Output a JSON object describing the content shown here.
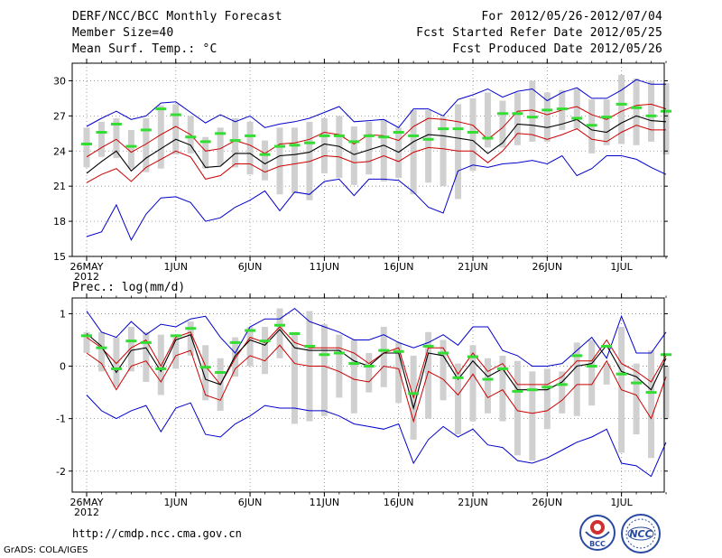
{
  "header": {
    "title": "DERF/NCC/BCC Monthly Forecast",
    "member_size": "Member Size=40",
    "variable": "Mean Surf. Temp.: °C",
    "period": "For 2012/05/26-2012/07/04",
    "fcst_started": "Fcst Started Refer Date 2012/05/25",
    "fcst_produced": "Fcst Produced Date 2012/05/26"
  },
  "panel2_label": "Prec.: log(mm/d)",
  "footer": {
    "url": "http://cmdp.ncc.cma.gov.cn",
    "grads_credit": "GrADS: COLA/IGES",
    "logo_left_text": "BCC",
    "logo_right_text": "NCC"
  },
  "x_ticks": [
    {
      "day": 0,
      "label": "26MAY",
      "sub": "2012"
    },
    {
      "day": 6,
      "label": "1JUN"
    },
    {
      "day": 11,
      "label": "6JUN"
    },
    {
      "day": 16,
      "label": "11JUN"
    },
    {
      "day": 21,
      "label": "16JUN"
    },
    {
      "day": 26,
      "label": "21JUN"
    },
    {
      "day": 31,
      "label": "26JUN"
    },
    {
      "day": 36,
      "label": "1JUL"
    }
  ],
  "colors": {
    "ensemble_max_min": "#0000cc",
    "spread": "#cc0000",
    "mean": "#000000",
    "box": "#d0d0d0",
    "observed": "#33dd33"
  },
  "chart_data": [
    {
      "type": "line",
      "title": "Mean Surf. Temp.: °C",
      "xlabel": "",
      "ylabel": "",
      "ylim": [
        15,
        31.5
      ],
      "yticks": [
        15,
        18,
        21,
        24,
        27,
        30
      ],
      "x": [
        0,
        1,
        2,
        3,
        4,
        5,
        6,
        7,
        8,
        9,
        10,
        11,
        12,
        13,
        14,
        15,
        16,
        17,
        18,
        19,
        20,
        21,
        22,
        23,
        24,
        25,
        26,
        27,
        28,
        29,
        30,
        31,
        32,
        33,
        34,
        35,
        36,
        37,
        38,
        39
      ],
      "series": [
        {
          "name": "max",
          "values": [
            26.1,
            26.8,
            27.4,
            26.7,
            27.0,
            28.1,
            28.2,
            27.3,
            26.4,
            27.1,
            26.5,
            27.0,
            26.0,
            26.3,
            26.5,
            26.8,
            27.3,
            27.8,
            26.5,
            26.6,
            26.7,
            26.0,
            27.6,
            27.6,
            27.0,
            28.4,
            28.8,
            29.3,
            28.6,
            29.1,
            29.3,
            28.3,
            29.0,
            29.4,
            28.5,
            28.5,
            29.2,
            30.1,
            29.7,
            29.7
          ]
        },
        {
          "name": "upper",
          "values": [
            23.5,
            24.3,
            25.0,
            23.9,
            24.6,
            25.4,
            26.1,
            25.4,
            24.0,
            24.2,
            24.9,
            24.5,
            23.8,
            24.6,
            24.7,
            25.0,
            25.6,
            25.4,
            24.6,
            25.4,
            25.3,
            24.9,
            26.1,
            26.8,
            26.7,
            26.5,
            26.2,
            25.0,
            26.0,
            27.4,
            27.5,
            27.1,
            27.5,
            27.8,
            27.1,
            26.7,
            27.4,
            27.9,
            28.0,
            27.6
          ]
        },
        {
          "name": "mean",
          "values": [
            22.1,
            23.1,
            24.0,
            22.3,
            23.4,
            24.2,
            25.0,
            24.5,
            22.6,
            22.7,
            23.8,
            23.8,
            22.9,
            23.6,
            23.7,
            23.9,
            24.6,
            24.4,
            23.7,
            24.1,
            24.5,
            23.9,
            24.8,
            25.4,
            25.3,
            25.1,
            24.9,
            23.8,
            24.7,
            26.3,
            26.2,
            26.0,
            26.3,
            26.7,
            25.8,
            25.6,
            26.4,
            27.0,
            26.6,
            26.5
          ]
        },
        {
          "name": "lower",
          "values": [
            21.3,
            22.0,
            22.5,
            21.4,
            22.6,
            23.3,
            24.0,
            23.5,
            21.6,
            21.9,
            22.9,
            22.9,
            22.2,
            22.7,
            22.9,
            23.1,
            23.6,
            23.5,
            23.0,
            23.1,
            23.6,
            23.1,
            23.9,
            24.3,
            24.2,
            24.0,
            24.0,
            23.0,
            24.0,
            25.5,
            25.4,
            25.0,
            25.4,
            25.9,
            25.0,
            24.8,
            25.6,
            26.2,
            25.8,
            25.8
          ]
        },
        {
          "name": "min",
          "values": [
            16.7,
            17.1,
            19.4,
            16.4,
            18.6,
            20.0,
            20.1,
            19.6,
            18.0,
            18.3,
            19.2,
            19.8,
            20.6,
            18.9,
            20.5,
            20.3,
            21.4,
            21.6,
            20.2,
            21.6,
            21.6,
            21.5,
            20.5,
            19.2,
            18.7,
            22.3,
            22.8,
            22.6,
            22.9,
            23.0,
            23.2,
            22.9,
            23.6,
            21.9,
            22.5,
            23.6,
            23.6,
            23.3,
            22.6,
            22.0
          ]
        },
        {
          "name": "box_top",
          "values": [
            26.0,
            26.5,
            26.8,
            25.8,
            26.8,
            27.9,
            28.0,
            27.0,
            25.2,
            26.0,
            26.8,
            26.5,
            24.9,
            26.0,
            26.0,
            26.5,
            26.8,
            27.0,
            26.1,
            26.5,
            26.7,
            26.0,
            27.5,
            27.5,
            26.9,
            28.0,
            28.5,
            29.0,
            28.3,
            29.0,
            30.0,
            29.0,
            29.2,
            29.3,
            28.4,
            28.4,
            30.5,
            30.2,
            30.0,
            29.8
          ]
        },
        {
          "name": "box_bottom",
          "values": [
            22.6,
            23.5,
            23.4,
            22.5,
            22.2,
            22.5,
            23.7,
            23.8,
            22.5,
            22.8,
            22.6,
            22.0,
            21.5,
            20.3,
            20.4,
            19.8,
            22.1,
            21.7,
            21.1,
            22.0,
            21.4,
            21.7,
            20.3,
            21.3,
            21.0,
            19.9,
            22.3,
            24.3,
            24.3,
            24.5,
            24.8,
            24.8,
            25.8,
            25.9,
            23.8,
            24.5,
            24.6,
            24.5,
            24.8,
            23.7
          ]
        },
        {
          "name": "observed",
          "values": [
            24.6,
            25.6,
            26.3,
            24.4,
            25.8,
            27.6,
            27.1,
            25.2,
            24.8,
            25.5,
            24.9,
            25.3,
            23.7,
            24.4,
            24.5,
            24.7,
            25.3,
            25.3,
            24.8,
            25.3,
            25.2,
            25.6,
            25.3,
            25.0,
            25.9,
            25.9,
            25.6,
            25.1,
            27.2,
            27.2,
            26.9,
            27.5,
            27.6,
            26.8,
            26.2,
            26.9,
            28.0,
            27.7,
            27.0,
            27.4
          ]
        }
      ]
    },
    {
      "type": "line",
      "title": "Prec.: log(mm/d)",
      "xlabel": "",
      "ylabel": "",
      "ylim": [
        -2.4,
        1.3
      ],
      "yticks": [
        -2,
        -1,
        0,
        1
      ],
      "x": [
        0,
        1,
        2,
        3,
        4,
        5,
        6,
        7,
        8,
        9,
        10,
        11,
        12,
        13,
        14,
        15,
        16,
        17,
        18,
        19,
        20,
        21,
        22,
        23,
        24,
        25,
        26,
        27,
        28,
        29,
        30,
        31,
        32,
        33,
        34,
        35,
        36,
        37,
        38,
        39
      ],
      "series": [
        {
          "name": "max",
          "values": [
            1.05,
            0.65,
            0.55,
            0.85,
            0.6,
            0.8,
            0.75,
            0.9,
            0.95,
            0.55,
            0.25,
            0.75,
            0.9,
            0.9,
            1.1,
            0.85,
            0.75,
            0.65,
            0.5,
            0.5,
            0.6,
            0.45,
            0.35,
            0.45,
            0.6,
            0.4,
            0.75,
            0.75,
            0.3,
            0.2,
            0.0,
            0.0,
            0.05,
            0.3,
            0.55,
            0.15,
            0.95,
            0.25,
            0.25,
            0.65
          ]
        },
        {
          "name": "upper",
          "values": [
            0.55,
            0.35,
            0.05,
            0.35,
            0.5,
            0.0,
            0.55,
            0.65,
            0.0,
            -0.35,
            0.15,
            0.55,
            0.45,
            0.75,
            0.45,
            0.35,
            0.35,
            0.35,
            0.25,
            0.05,
            0.25,
            0.35,
            -0.6,
            0.35,
            0.35,
            -0.15,
            0.25,
            -0.1,
            0.05,
            -0.35,
            -0.35,
            -0.35,
            -0.2,
            0.1,
            0.1,
            0.5,
            0.05,
            -0.1,
            -0.3,
            0.2
          ]
        },
        {
          "name": "mean",
          "values": [
            0.62,
            0.38,
            -0.12,
            0.3,
            0.35,
            -0.1,
            0.5,
            0.6,
            -0.25,
            -0.35,
            0.2,
            0.5,
            0.4,
            0.7,
            0.35,
            0.3,
            0.3,
            0.3,
            0.1,
            0.0,
            0.25,
            0.25,
            -0.8,
            0.25,
            0.2,
            -0.25,
            0.1,
            -0.2,
            -0.05,
            -0.45,
            -0.45,
            -0.45,
            -0.3,
            0.0,
            0.05,
            0.4,
            -0.1,
            -0.2,
            -0.45,
            0.15
          ]
        },
        {
          "name": "lower",
          "values": [
            0.25,
            0.05,
            -0.45,
            0.0,
            0.1,
            -0.3,
            0.2,
            0.3,
            -0.55,
            -0.65,
            -0.05,
            0.2,
            0.1,
            0.4,
            0.05,
            0.0,
            0.0,
            -0.1,
            -0.25,
            -0.3,
            0.0,
            -0.05,
            -1.05,
            -0.1,
            -0.25,
            -0.55,
            -0.15,
            -0.6,
            -0.45,
            -0.85,
            -0.9,
            -0.85,
            -0.65,
            -0.35,
            -0.35,
            0.1,
            -0.45,
            -0.55,
            -1.0,
            -0.2
          ]
        },
        {
          "name": "min",
          "values": [
            -0.55,
            -0.85,
            -1.0,
            -0.85,
            -0.75,
            -1.25,
            -0.8,
            -0.7,
            -1.3,
            -1.35,
            -1.1,
            -0.95,
            -0.75,
            -0.8,
            -0.8,
            -0.85,
            -0.85,
            -0.95,
            -1.1,
            -1.15,
            -1.2,
            -1.1,
            -1.85,
            -1.4,
            -1.15,
            -1.35,
            -1.2,
            -1.5,
            -1.55,
            -1.8,
            -1.85,
            -1.75,
            -1.6,
            -1.45,
            -1.35,
            -1.2,
            -1.85,
            -1.9,
            -2.1,
            -1.45
          ]
        },
        {
          "name": "box_top",
          "values": [
            0.65,
            0.65,
            0.55,
            0.75,
            0.65,
            0.6,
            0.55,
            0.85,
            0.4,
            0.15,
            0.55,
            0.75,
            0.75,
            1.1,
            0.65,
            1.05,
            0.8,
            0.6,
            0.5,
            0.25,
            0.75,
            0.45,
            0.2,
            0.65,
            0.5,
            0.05,
            0.4,
            0.15,
            0.2,
            0.1,
            -0.1,
            -0.05,
            -0.1,
            0.45,
            0.5,
            0.05,
            0.75,
            0.05,
            0.3,
            0.0
          ]
        },
        {
          "name": "box_bottom",
          "values": [
            0.25,
            -0.1,
            -0.4,
            -0.1,
            -0.3,
            -0.55,
            -0.05,
            0.2,
            -0.65,
            -0.85,
            -0.2,
            0.0,
            -0.15,
            0.15,
            -1.1,
            -1.05,
            -0.95,
            -0.6,
            -0.9,
            -0.5,
            -0.4,
            -0.7,
            -1.4,
            -1.0,
            -0.65,
            -1.3,
            -1.05,
            -0.9,
            -1.05,
            -1.7,
            -1.8,
            -1.2,
            -0.9,
            -0.95,
            -0.75,
            -0.35,
            -1.65,
            -1.3,
            -1.75,
            -1.0
          ]
        },
        {
          "name": "observed",
          "values": [
            0.58,
            0.35,
            -0.05,
            0.48,
            0.45,
            -0.05,
            0.58,
            0.72,
            -0.02,
            -0.12,
            0.45,
            0.68,
            0.48,
            0.78,
            0.62,
            0.38,
            0.22,
            0.25,
            0.05,
            0.0,
            0.3,
            0.28,
            -0.52,
            0.38,
            0.25,
            -0.22,
            0.18,
            -0.25,
            -0.05,
            -0.48,
            -0.45,
            -0.4,
            -0.35,
            0.2,
            0.0,
            0.38,
            -0.15,
            -0.32,
            -0.5,
            0.22
          ]
        }
      ]
    }
  ]
}
